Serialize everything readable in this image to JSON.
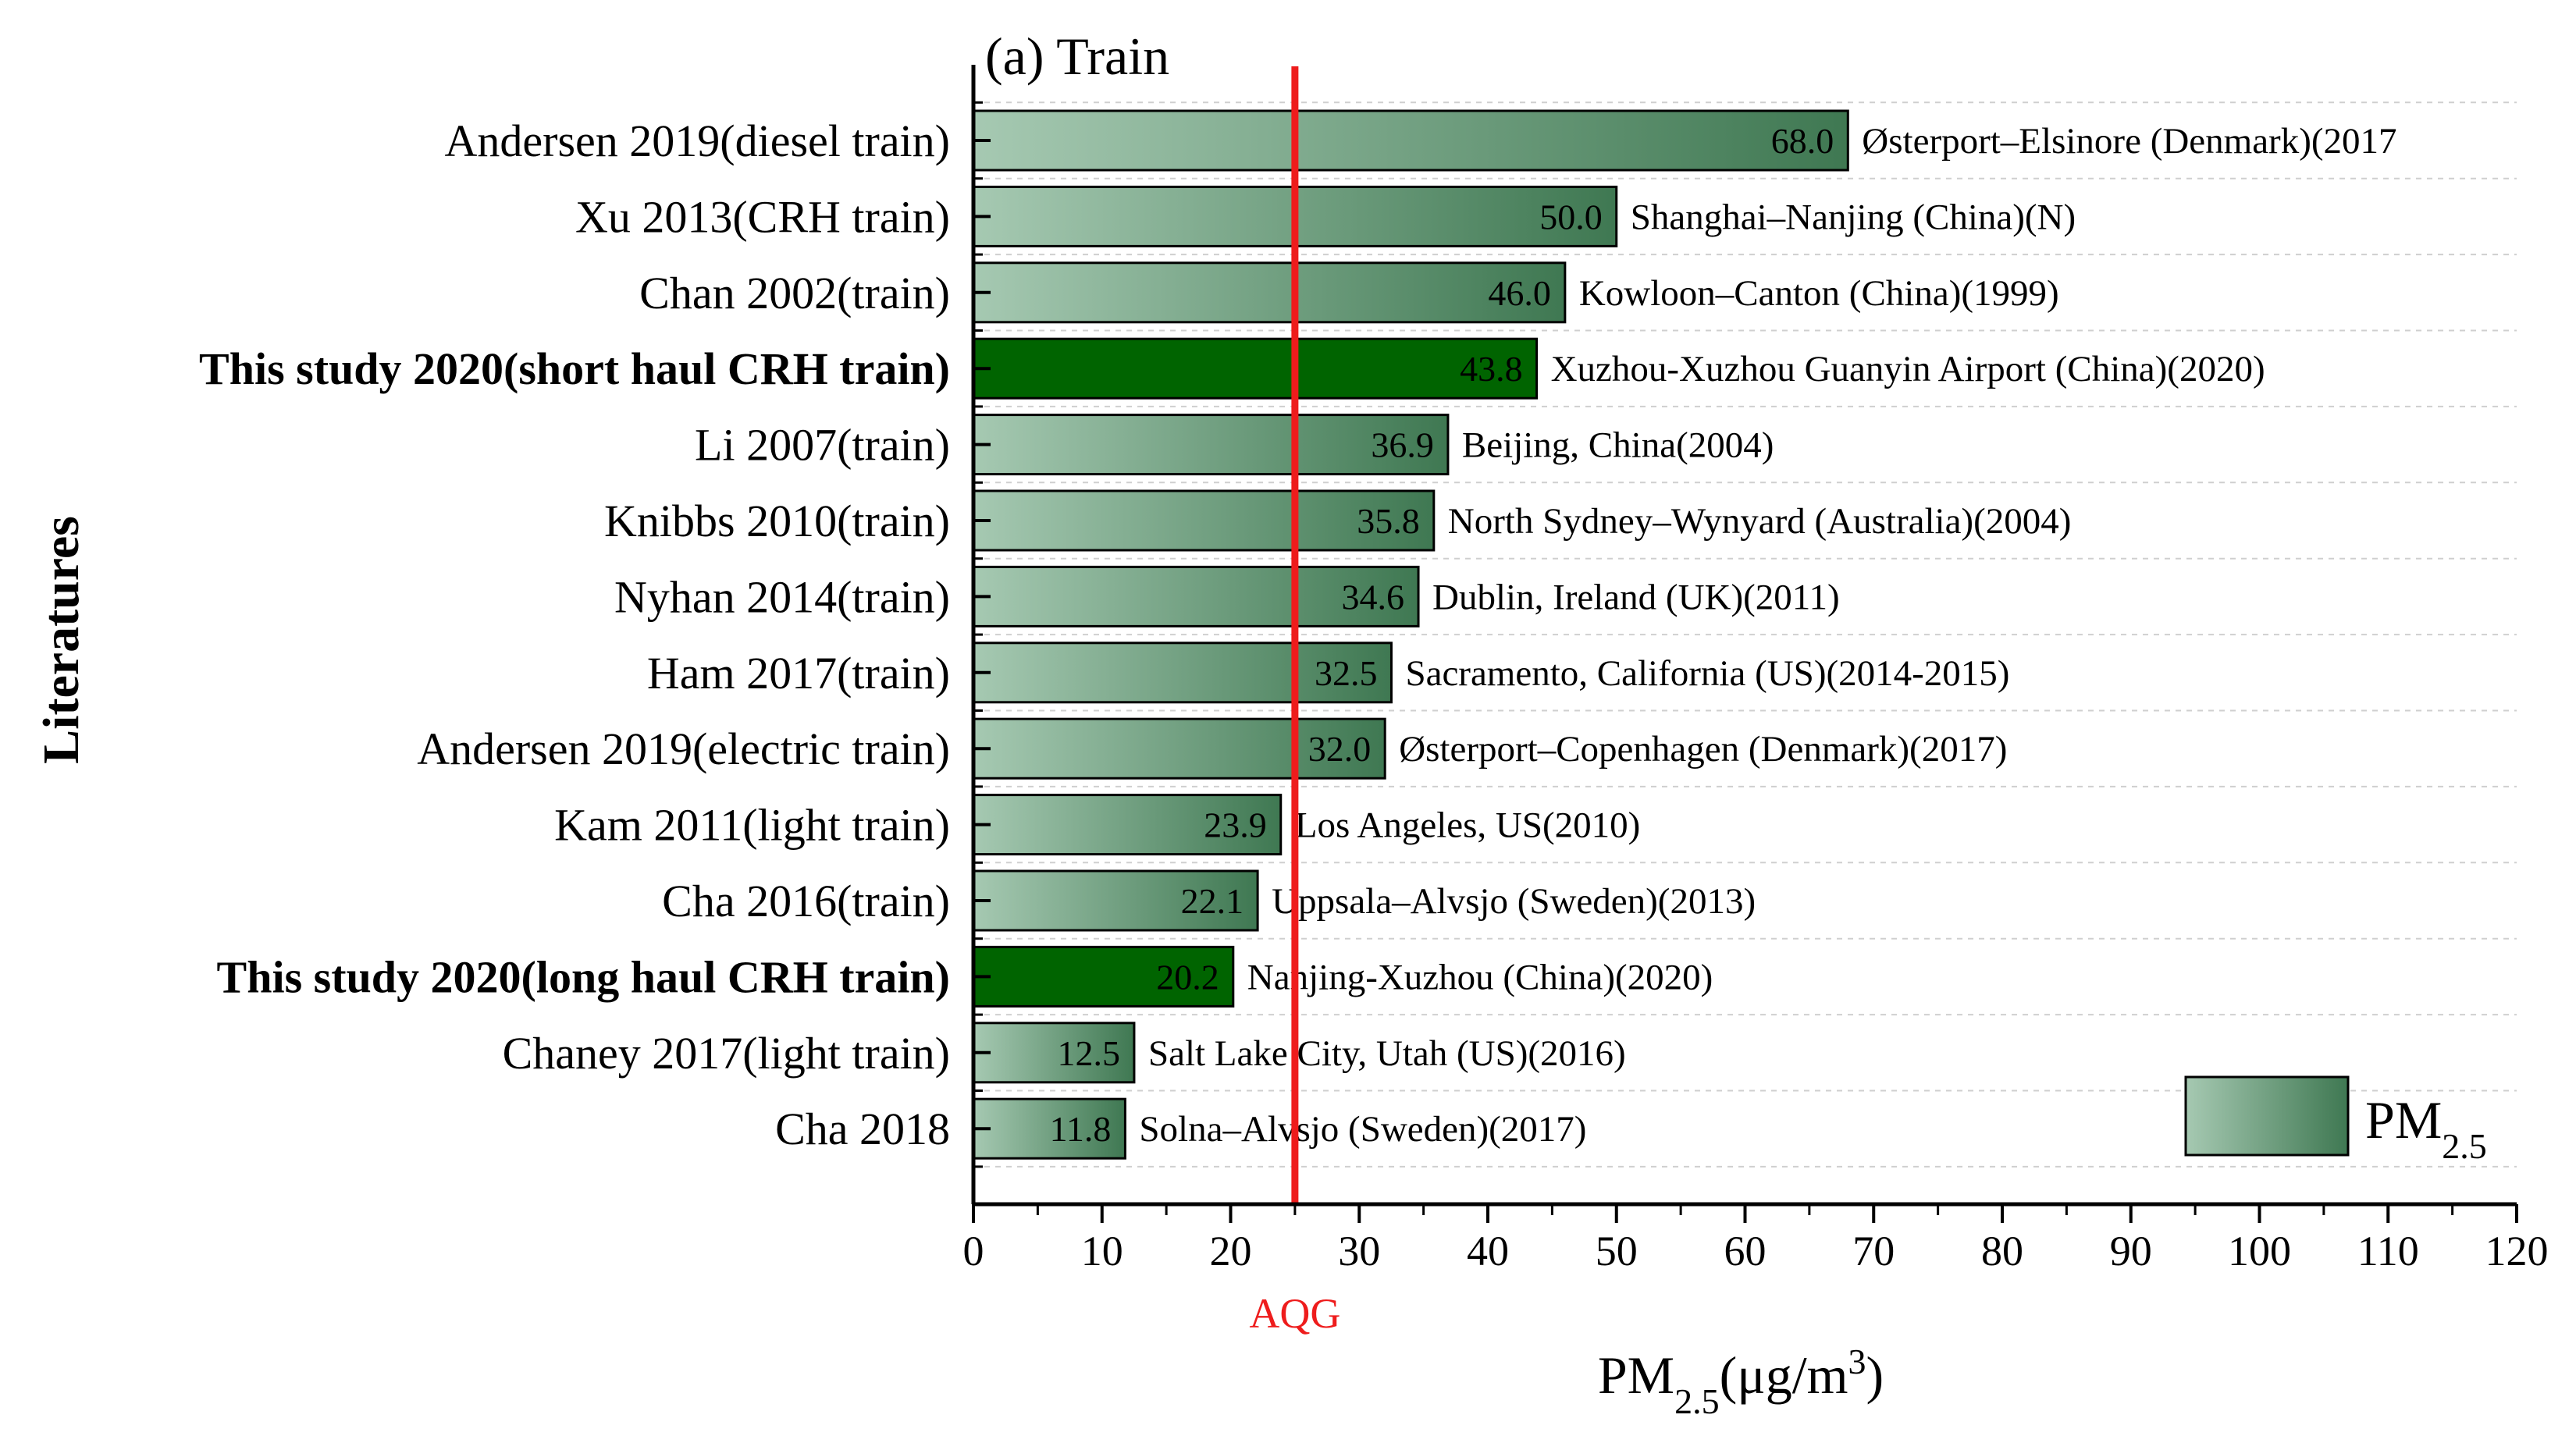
{
  "chart_data": {
    "type": "bar",
    "orientation": "horizontal",
    "title": "(a) Train",
    "xlabel": "PM",
    "xlabel_sub": "2.5",
    "xlabel_unit_pre": "(μg/m",
    "xlabel_unit_sup": "3",
    "xlabel_unit_post": ")",
    "ylabel": "Literatures",
    "xlim": [
      0,
      120
    ],
    "xticks": [
      0,
      10,
      20,
      30,
      40,
      50,
      60,
      70,
      80,
      90,
      100,
      110,
      120
    ],
    "grid": "horizontal-dashed",
    "reference_line": {
      "value": 25,
      "label": "AQG",
      "color": "#ee1c1c"
    },
    "legend": {
      "label": "PM",
      "sub": "2.5",
      "position": "bottom-right"
    },
    "colors": {
      "gradient_start": "#a6c9b2",
      "gradient_end": "#3f7852",
      "highlight": "#006400"
    },
    "bars": [
      {
        "category": "Andersen 2019(diesel train)",
        "value": 68.0,
        "value_label": "68.0",
        "note": "Østerport–Elsinore (Denmark)(2017",
        "highlight": false
      },
      {
        "category": "Xu 2013(CRH train)",
        "value": 50.0,
        "value_label": "50.0",
        "note": "Shanghai–Nanjing (China)(N)",
        "highlight": false
      },
      {
        "category": "Chan 2002(train)",
        "value": 46.0,
        "value_label": "46.0",
        "note": "Kowloon–Canton (China)(1999)",
        "highlight": false
      },
      {
        "category": "This study 2020(short haul CRH train)",
        "value": 43.8,
        "value_label": "43.8",
        "note": "Xuzhou-Xuzhou Guanyin Airport (China)(2020)",
        "highlight": true
      },
      {
        "category": "Li 2007(train)",
        "value": 36.9,
        "value_label": "36.9",
        "note": "Beijing, China(2004)",
        "highlight": false
      },
      {
        "category": "Knibbs 2010(train)",
        "value": 35.8,
        "value_label": "35.8",
        "note": "North Sydney–Wynyard (Australia)(2004)",
        "highlight": false
      },
      {
        "category": "Nyhan 2014(train)",
        "value": 34.6,
        "value_label": "34.6",
        "note": "Dublin, Ireland (UK)(2011)",
        "highlight": false
      },
      {
        "category": "Ham 2017(train)",
        "value": 32.5,
        "value_label": "32.5",
        "note": "Sacramento, California (US)(2014-2015)",
        "highlight": false
      },
      {
        "category": "Andersen 2019(electric train)",
        "value": 32.0,
        "value_label": "32.0",
        "note": "Østerport–Copenhagen (Denmark)(2017)",
        "highlight": false
      },
      {
        "category": "Kam 2011(light train)",
        "value": 23.9,
        "value_label": "23.9",
        "note": "Los Angeles, US(2010)",
        "highlight": false
      },
      {
        "category": "Cha 2016(train)",
        "value": 22.1,
        "value_label": "22.1",
        "note": "Uppsala–Alvsjo (Sweden)(2013)",
        "highlight": false
      },
      {
        "category": "This study 2020(long haul CRH train)",
        "value": 20.2,
        "value_label": "20.2",
        "note": "Nanjing-Xuzhou (China)(2020)",
        "highlight": true
      },
      {
        "category": "Chaney 2017(light train)",
        "value": 12.5,
        "value_label": "12.5",
        "note": "Salt Lake City, Utah (US)(2016)",
        "highlight": false
      },
      {
        "category": "Cha 2018",
        "value": 11.8,
        "value_label": "11.8",
        "note": "Solna–Alvsjo (Sweden)(2017)",
        "highlight": false
      }
    ]
  }
}
